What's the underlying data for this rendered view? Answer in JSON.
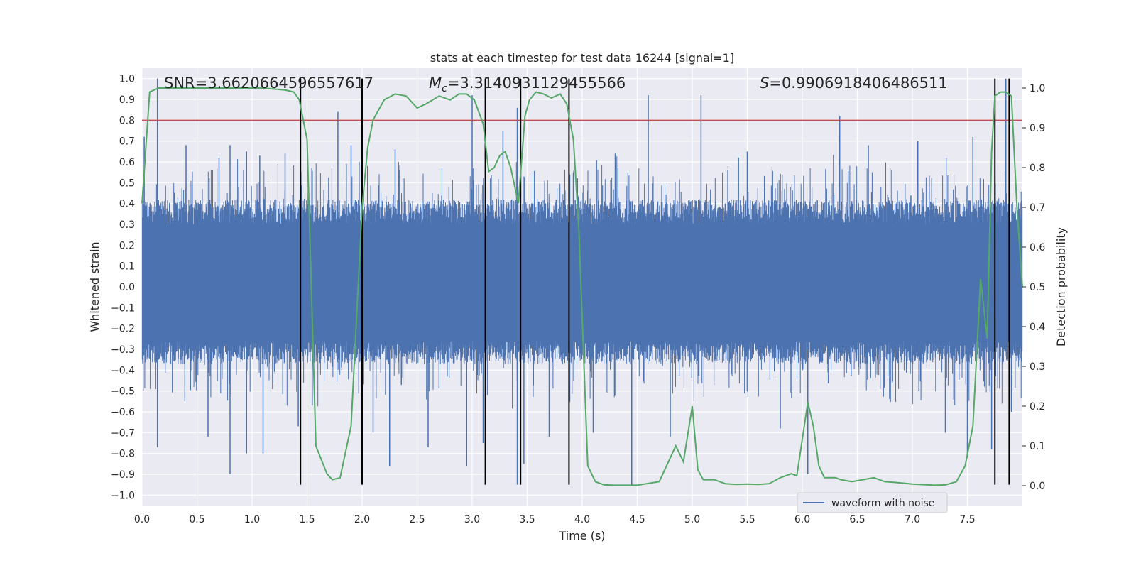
{
  "chart_data": {
    "type": "line",
    "title": "stats at each timestep for test data 16244 [signal=1]",
    "xlabel": "Time (s)",
    "ylabel": "Whitened strain",
    "ylabel_right": "Detection probability",
    "xlim": [
      0,
      8
    ],
    "ylim": [
      -1.05,
      1.05
    ],
    "ylim_right": [
      -0.05,
      1.05
    ],
    "xticks": [
      "0.0",
      "0.5",
      "1.0",
      "1.5",
      "2.0",
      "2.5",
      "3.0",
      "3.5",
      "4.0",
      "4.5",
      "5.0",
      "5.5",
      "6.0",
      "6.5",
      "7.0",
      "7.5"
    ],
    "yticks": [
      "−1.0",
      "−0.9",
      "−0.8",
      "−0.7",
      "−0.6",
      "−0.5",
      "−0.4",
      "−0.3",
      "−0.2",
      "−0.1",
      "0.0",
      "0.1",
      "0.2",
      "0.3",
      "0.4",
      "0.5",
      "0.6",
      "0.7",
      "0.8",
      "0.9",
      "1.0"
    ],
    "yticks_right": [
      "0.0",
      "0.1",
      "0.2",
      "0.3",
      "0.4",
      "0.5",
      "0.6",
      "0.7",
      "0.8",
      "0.9",
      "1.0"
    ],
    "grid": true,
    "legend_position": "lower-right",
    "annotations": {
      "snr": "SNR=3.6620664596557617",
      "mc_symbol": "M",
      "mc_sub": "c",
      "mc_value": "=3.3140931129455566",
      "s_symbol": "S",
      "s_value": "=0.9906918406486511"
    },
    "series": [
      {
        "name": "waveform with noise",
        "axis": "left",
        "color": "#4c72b0",
        "band_upper": 0.42,
        "band_lower": -0.37,
        "spikes": [
          {
            "x": 0.02,
            "y": 0.72
          },
          {
            "x": 0.14,
            "y": 1.0
          },
          {
            "x": 0.14,
            "y": -0.77
          },
          {
            "x": 0.4,
            "y": 0.68
          },
          {
            "x": 0.6,
            "y": -0.72
          },
          {
            "x": 0.7,
            "y": 0.62
          },
          {
            "x": 0.8,
            "y": 0.68
          },
          {
            "x": 0.8,
            "y": -0.9
          },
          {
            "x": 0.95,
            "y": 0.65
          },
          {
            "x": 0.95,
            "y": -0.8
          },
          {
            "x": 1.07,
            "y": 0.63
          },
          {
            "x": 1.1,
            "y": -0.8
          },
          {
            "x": 1.3,
            "y": 0.64
          },
          {
            "x": 1.42,
            "y": -0.67
          },
          {
            "x": 1.78,
            "y": 0.84
          },
          {
            "x": 1.9,
            "y": 0.68
          },
          {
            "x": 2.1,
            "y": -0.7
          },
          {
            "x": 2.25,
            "y": -0.86
          },
          {
            "x": 2.3,
            "y": 0.66
          },
          {
            "x": 2.6,
            "y": -0.77
          },
          {
            "x": 2.95,
            "y": -0.86
          },
          {
            "x": 3.0,
            "y": 0.92
          },
          {
            "x": 3.1,
            "y": -0.75
          },
          {
            "x": 3.28,
            "y": 0.75
          },
          {
            "x": 3.41,
            "y": 0.86
          },
          {
            "x": 3.41,
            "y": -0.95
          },
          {
            "x": 3.47,
            "y": -0.85
          },
          {
            "x": 3.7,
            "y": -0.72
          },
          {
            "x": 4.1,
            "y": -0.7
          },
          {
            "x": 4.3,
            "y": 0.64
          },
          {
            "x": 4.45,
            "y": -0.95
          },
          {
            "x": 4.6,
            "y": 0.92
          },
          {
            "x": 4.8,
            "y": -0.72
          },
          {
            "x": 5.08,
            "y": 0.92
          },
          {
            "x": 5.5,
            "y": 0.65
          },
          {
            "x": 5.8,
            "y": -0.68
          },
          {
            "x": 6.05,
            "y": -0.9
          },
          {
            "x": 6.34,
            "y": 0.82
          },
          {
            "x": 6.6,
            "y": 0.68
          },
          {
            "x": 7.05,
            "y": 0.7
          },
          {
            "x": 7.3,
            "y": -0.7
          },
          {
            "x": 7.5,
            "y": -0.82
          },
          {
            "x": 7.55,
            "y": 0.72
          },
          {
            "x": 7.72,
            "y": -0.78
          },
          {
            "x": 7.85,
            "y": 1.0
          },
          {
            "x": 7.9,
            "y": -0.6
          }
        ]
      },
      {
        "name": "",
        "axis": "right",
        "color": "#55a868",
        "x": [
          0.0,
          0.07,
          0.15,
          0.3,
          0.5,
          0.7,
          0.9,
          1.1,
          1.3,
          1.38,
          1.43,
          1.5,
          1.58,
          1.68,
          1.73,
          1.8,
          1.9,
          2.0,
          2.05,
          2.1,
          2.2,
          2.3,
          2.4,
          2.5,
          2.58,
          2.7,
          2.8,
          2.88,
          2.95,
          3.02,
          3.1,
          3.15,
          3.2,
          3.25,
          3.3,
          3.35,
          3.42,
          3.48,
          3.52,
          3.58,
          3.65,
          3.72,
          3.8,
          3.86,
          3.92,
          3.97,
          4.05,
          4.12,
          4.2,
          4.3,
          4.5,
          4.7,
          4.85,
          4.92,
          5.0,
          5.05,
          5.1,
          5.2,
          5.3,
          5.4,
          5.5,
          5.6,
          5.7,
          5.8,
          5.9,
          5.95,
          6.05,
          6.1,
          6.15,
          6.2,
          6.3,
          6.35,
          6.45,
          6.55,
          6.65,
          6.75,
          6.85,
          7.0,
          7.2,
          7.3,
          7.4,
          7.48,
          7.55,
          7.62,
          7.68,
          7.72,
          7.75,
          7.8,
          7.85,
          7.9,
          7.95,
          8.0
        ],
        "y": [
          0.71,
          0.99,
          1.0,
          1.0,
          1.0,
          1.0,
          1.0,
          1.0,
          0.995,
          0.99,
          0.97,
          0.87,
          0.1,
          0.03,
          0.015,
          0.02,
          0.15,
          0.7,
          0.85,
          0.92,
          0.97,
          0.985,
          0.98,
          0.95,
          0.96,
          0.98,
          0.97,
          0.985,
          0.985,
          0.97,
          0.91,
          0.79,
          0.8,
          0.83,
          0.84,
          0.8,
          0.71,
          0.93,
          0.97,
          0.99,
          0.985,
          0.975,
          0.985,
          0.96,
          0.87,
          0.64,
          0.05,
          0.01,
          0.002,
          0.001,
          0.001,
          0.01,
          0.1,
          0.06,
          0.2,
          0.04,
          0.015,
          0.015,
          0.005,
          0.003,
          0.004,
          0.003,
          0.005,
          0.02,
          0.03,
          0.025,
          0.21,
          0.15,
          0.05,
          0.02,
          0.02,
          0.015,
          0.01,
          0.015,
          0.02,
          0.01,
          0.008,
          0.004,
          0.001,
          0.002,
          0.01,
          0.05,
          0.15,
          0.52,
          0.37,
          0.84,
          0.98,
          0.99,
          0.99,
          0.98,
          0.7,
          0.5
        ]
      }
    ],
    "hlines": [
      {
        "y": 0.8,
        "axis": "left",
        "color": "#c44e52"
      }
    ],
    "vlines": {
      "x": [
        1.44,
        2.0,
        3.12,
        3.44,
        3.88,
        7.75,
        7.88
      ],
      "ymin": -0.95,
      "ymax": 1.0,
      "color": "#000000"
    }
  }
}
